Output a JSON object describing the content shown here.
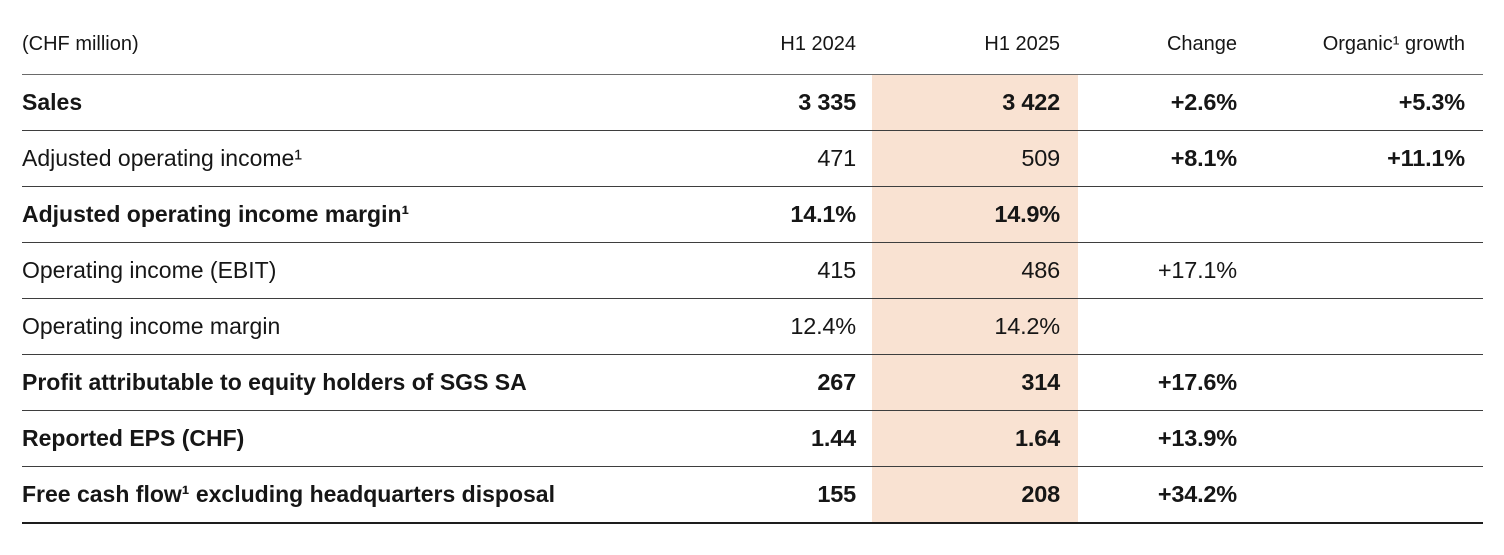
{
  "table": {
    "unit_label": "(CHF million)",
    "columns": [
      "H1 2024",
      "H1 2025",
      "Change",
      "Organic¹ growth"
    ],
    "colors": {
      "highlight_column": "#f9e2d2",
      "row_border": "#3e3e3e",
      "header_border": "#6a6a6a",
      "bottom_border": "#1d1d1d",
      "text": "#161616"
    },
    "rows": [
      {
        "label": "Sales",
        "label_bold": true,
        "h1_2024": "3 335",
        "h1_2025": "3 422",
        "change": "+2.6%",
        "organic_growth": "+5.3%",
        "values_bold": true,
        "change_bold": true
      },
      {
        "label": "Adjusted operating income¹",
        "label_bold": false,
        "h1_2024": "471",
        "h1_2025": "509",
        "change": "+8.1%",
        "organic_growth": "+11.1%",
        "values_bold": false,
        "change_bold": true
      },
      {
        "label": "Adjusted operating income margin¹",
        "label_bold": true,
        "h1_2024": "14.1%",
        "h1_2025": "14.9%",
        "change": "",
        "organic_growth": "",
        "values_bold": true,
        "change_bold": false
      },
      {
        "label": "Operating income (EBIT)",
        "label_bold": false,
        "h1_2024": "415",
        "h1_2025": "486",
        "change": "+17.1%",
        "organic_growth": "",
        "values_bold": false,
        "change_bold": false
      },
      {
        "label": "Operating income margin",
        "label_bold": false,
        "h1_2024": "12.4%",
        "h1_2025": "14.2%",
        "change": "",
        "organic_growth": "",
        "values_bold": false,
        "change_bold": false
      },
      {
        "label": "Profit attributable to equity holders of SGS SA",
        "label_bold": true,
        "h1_2024": "267",
        "h1_2025": "314",
        "change": "+17.6%",
        "organic_growth": "",
        "values_bold": true,
        "change_bold": true
      },
      {
        "label": "Reported EPS (CHF)",
        "label_bold": true,
        "h1_2024": "1.44",
        "h1_2025": "1.64",
        "change": "+13.9%",
        "organic_growth": "",
        "values_bold": true,
        "change_bold": true
      },
      {
        "label": "Free cash flow¹ excluding headquarters disposal",
        "label_bold": true,
        "h1_2024": "155",
        "h1_2025": "208",
        "change": "+34.2%",
        "organic_growth": "",
        "values_bold": true,
        "change_bold": true
      }
    ]
  }
}
